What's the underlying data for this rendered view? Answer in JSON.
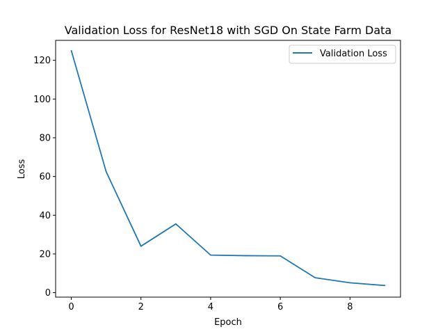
{
  "chart_data": {
    "type": "line",
    "title": "Validation Loss for ResNet18 with SGD On State Farm Data",
    "xlabel": "Epoch",
    "ylabel": "Loss",
    "x": [
      0,
      1,
      2,
      3,
      4,
      5,
      6,
      7,
      8,
      9
    ],
    "series": [
      {
        "name": "Validation Loss",
        "color": "#1f77b4",
        "values": [
          125.0,
          62.5,
          24.0,
          35.5,
          19.4,
          19.1,
          19.0,
          7.7,
          5.1,
          3.7
        ]
      }
    ],
    "xlim": [
      -0.45,
      9.45
    ],
    "ylim": [
      -2.3,
      130.3
    ],
    "xticks": [
      0,
      2,
      4,
      6,
      8
    ],
    "yticks": [
      0,
      20,
      40,
      60,
      80,
      100,
      120
    ],
    "grid": false,
    "legend_position": "upper right"
  }
}
